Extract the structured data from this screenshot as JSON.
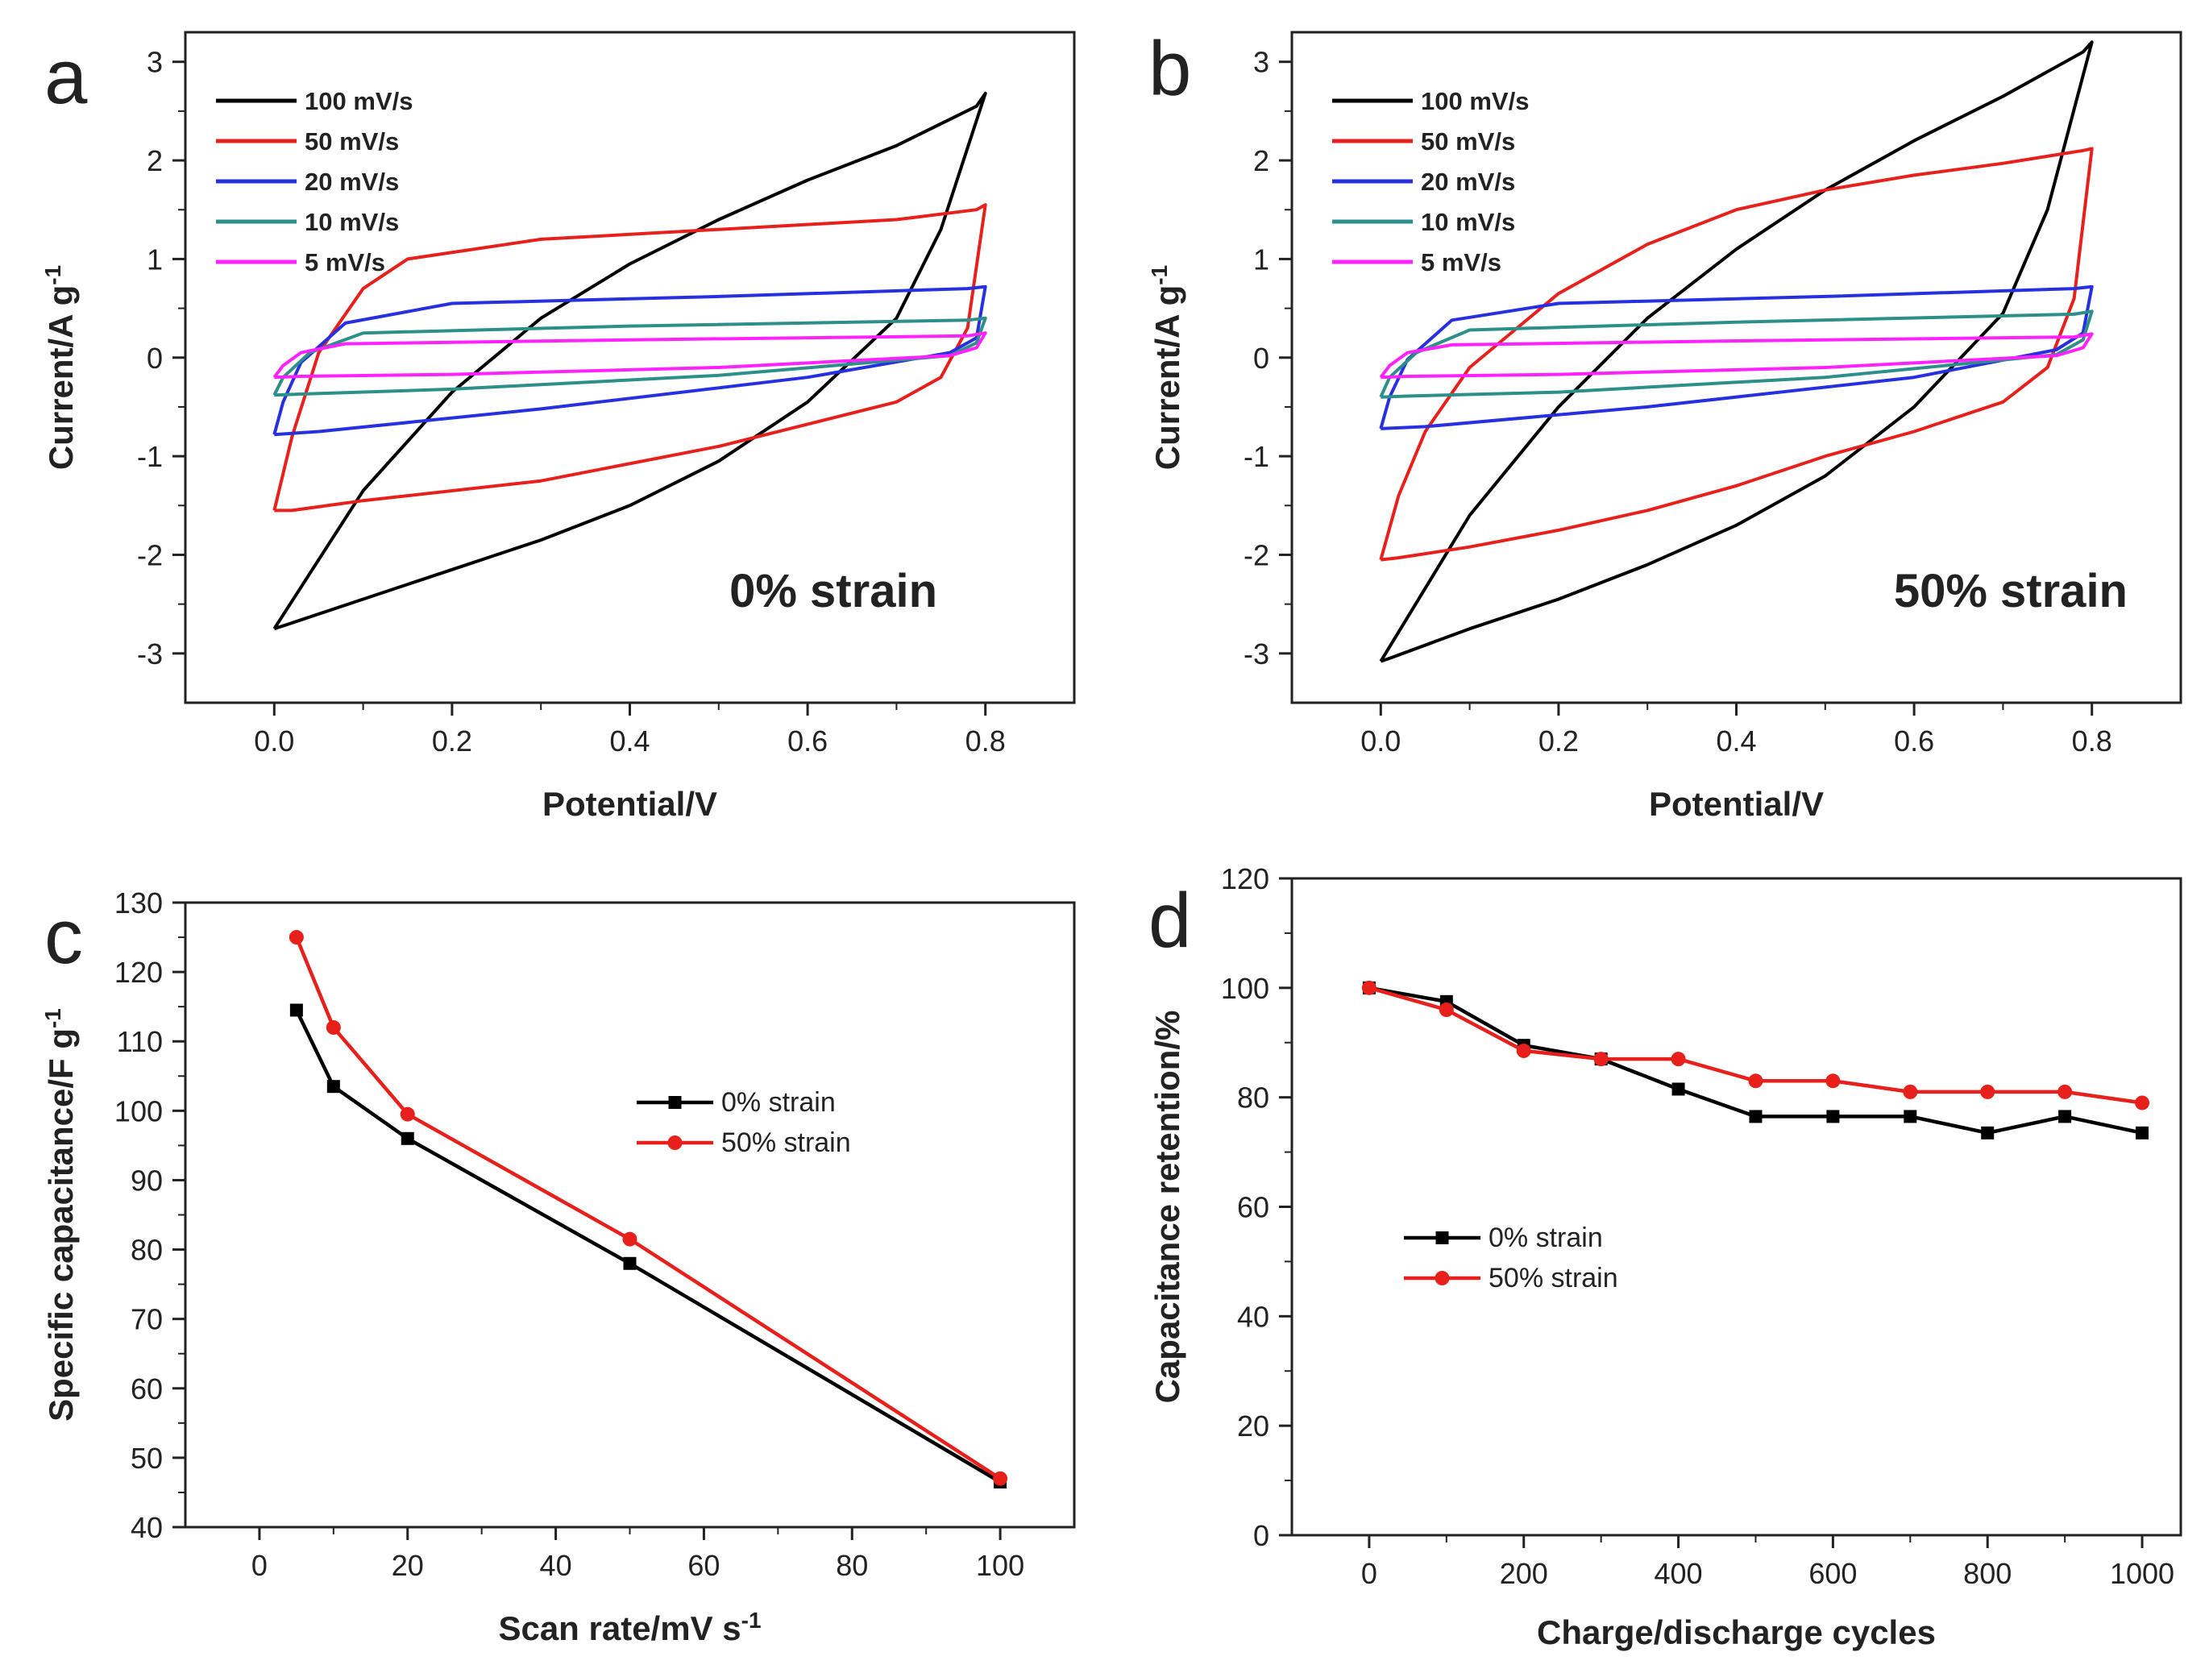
{
  "chart_data": [
    {
      "panel": "a",
      "type": "line",
      "xlabel": "Potential/V",
      "ylabel": "Current/A g",
      "ylabel_sup": "-1",
      "xlim": [
        -0.1,
        0.9
      ],
      "ylim": [
        -3.5,
        3.3
      ],
      "xticks": [
        "0.0",
        "0.2",
        "0.4",
        "0.6",
        "0.8"
      ],
      "xtick_values": [
        0,
        0.2,
        0.4,
        0.6,
        0.8
      ],
      "yticks": [
        "-3",
        "-2",
        "-1",
        "0",
        "1",
        "2",
        "3"
      ],
      "ytick_values": [
        -3,
        -2,
        -1,
        0,
        1,
        2,
        3
      ],
      "annotation": "0% strain",
      "series": [
        {
          "name": "100 mV/s",
          "color": "#000000",
          "x": [
            0,
            0.1,
            0.2,
            0.3,
            0.4,
            0.5,
            0.6,
            0.7,
            0.79,
            0.8,
            0.75,
            0.7,
            0.6,
            0.5,
            0.4,
            0.3,
            0.2,
            0.1,
            0.01,
            0
          ],
          "y": [
            -2.75,
            -1.35,
            -0.35,
            0.4,
            0.95,
            1.4,
            1.8,
            2.15,
            2.55,
            2.68,
            1.3,
            0.4,
            -0.45,
            -1.05,
            -1.5,
            -1.85,
            -2.15,
            -2.45,
            -2.72,
            -2.75
          ]
        },
        {
          "name": "50 mV/s",
          "color": "#e8201c",
          "x": [
            0,
            0.02,
            0.05,
            0.1,
            0.15,
            0.3,
            0.5,
            0.7,
            0.79,
            0.8,
            0.78,
            0.75,
            0.7,
            0.5,
            0.3,
            0.1,
            0.02,
            0
          ],
          "y": [
            -1.55,
            -0.8,
            0.05,
            0.7,
            1.0,
            1.2,
            1.3,
            1.4,
            1.5,
            1.55,
            0.3,
            -0.2,
            -0.45,
            -0.9,
            -1.25,
            -1.45,
            -1.55,
            -1.55
          ]
        },
        {
          "name": "20 mV/s",
          "color": "#2630e0",
          "x": [
            0,
            0.01,
            0.03,
            0.08,
            0.2,
            0.5,
            0.78,
            0.8,
            0.79,
            0.76,
            0.6,
            0.3,
            0.05,
            0
          ],
          "y": [
            -0.78,
            -0.45,
            -0.05,
            0.35,
            0.55,
            0.62,
            0.7,
            0.72,
            0.2,
            0.05,
            -0.2,
            -0.52,
            -0.75,
            -0.78
          ]
        },
        {
          "name": "10 mV/s",
          "color": "#2c8f8a",
          "x": [
            0,
            0.01,
            0.04,
            0.1,
            0.4,
            0.78,
            0.8,
            0.79,
            0.76,
            0.5,
            0.2,
            0.03,
            0
          ],
          "y": [
            -0.38,
            -0.2,
            0.05,
            0.25,
            0.32,
            0.38,
            0.4,
            0.15,
            0.02,
            -0.18,
            -0.32,
            -0.37,
            -0.38
          ]
        },
        {
          "name": "5 mV/s",
          "color": "#ff22ff",
          "x": [
            0,
            0.01,
            0.03,
            0.08,
            0.4,
            0.78,
            0.8,
            0.79,
            0.76,
            0.5,
            0.2,
            0.03,
            0
          ],
          "y": [
            -0.2,
            -0.08,
            0.05,
            0.14,
            0.18,
            0.22,
            0.25,
            0.1,
            0.02,
            -0.1,
            -0.17,
            -0.19,
            -0.2
          ]
        }
      ]
    },
    {
      "panel": "b",
      "type": "line",
      "xlabel": "Potential/V",
      "ylabel": "Current/A g",
      "ylabel_sup": "-1",
      "xlim": [
        -0.1,
        0.9
      ],
      "ylim": [
        -3.5,
        3.3
      ],
      "xticks": [
        "0.0",
        "0.2",
        "0.4",
        "0.6",
        "0.8"
      ],
      "xtick_values": [
        0,
        0.2,
        0.4,
        0.6,
        0.8
      ],
      "yticks": [
        "-3",
        "-2",
        "-1",
        "0",
        "1",
        "2",
        "3"
      ],
      "ytick_values": [
        -3,
        -2,
        -1,
        0,
        1,
        2,
        3
      ],
      "annotation": "50% strain",
      "series": [
        {
          "name": "100 mV/s",
          "color": "#000000",
          "x": [
            0,
            0.1,
            0.2,
            0.3,
            0.4,
            0.5,
            0.6,
            0.7,
            0.79,
            0.8,
            0.75,
            0.7,
            0.6,
            0.5,
            0.4,
            0.3,
            0.2,
            0.1,
            0.01,
            0
          ],
          "y": [
            -3.08,
            -1.6,
            -0.5,
            0.4,
            1.1,
            1.7,
            2.2,
            2.65,
            3.1,
            3.2,
            1.5,
            0.45,
            -0.5,
            -1.2,
            -1.7,
            -2.1,
            -2.45,
            -2.75,
            -3.05,
            -3.08
          ]
        },
        {
          "name": "50 mV/s",
          "color": "#e8201c",
          "x": [
            0,
            0.02,
            0.05,
            0.1,
            0.2,
            0.3,
            0.4,
            0.5,
            0.6,
            0.7,
            0.79,
            0.8,
            0.78,
            0.75,
            0.7,
            0.6,
            0.5,
            0.4,
            0.3,
            0.2,
            0.1,
            0.02,
            0
          ],
          "y": [
            -2.05,
            -1.4,
            -0.75,
            -0.1,
            0.65,
            1.15,
            1.5,
            1.7,
            1.85,
            1.97,
            2.1,
            2.12,
            0.6,
            -0.1,
            -0.45,
            -0.75,
            -1.0,
            -1.3,
            -1.55,
            -1.75,
            -1.92,
            -2.03,
            -2.05
          ]
        },
        {
          "name": "20 mV/s",
          "color": "#2630e0",
          "x": [
            0,
            0.01,
            0.03,
            0.08,
            0.2,
            0.5,
            0.78,
            0.8,
            0.79,
            0.76,
            0.6,
            0.3,
            0.05,
            0
          ],
          "y": [
            -0.72,
            -0.4,
            -0.02,
            0.38,
            0.55,
            0.62,
            0.7,
            0.72,
            0.25,
            0.08,
            -0.2,
            -0.5,
            -0.7,
            -0.72
          ]
        },
        {
          "name": "10 mV/s",
          "color": "#2c8f8a",
          "x": [
            0,
            0.01,
            0.04,
            0.1,
            0.4,
            0.78,
            0.8,
            0.79,
            0.76,
            0.5,
            0.2,
            0.03,
            0
          ],
          "y": [
            -0.4,
            -0.2,
            0.05,
            0.28,
            0.36,
            0.44,
            0.47,
            0.18,
            0.03,
            -0.2,
            -0.35,
            -0.39,
            -0.4
          ]
        },
        {
          "name": "5 mV/s",
          "color": "#ff22ff",
          "x": [
            0,
            0.01,
            0.03,
            0.08,
            0.4,
            0.78,
            0.8,
            0.79,
            0.76,
            0.5,
            0.2,
            0.03,
            0
          ],
          "y": [
            -0.2,
            -0.08,
            0.05,
            0.13,
            0.17,
            0.21,
            0.24,
            0.1,
            0.02,
            -0.1,
            -0.17,
            -0.19,
            -0.2
          ]
        }
      ]
    },
    {
      "panel": "c",
      "type": "line",
      "xlabel": "Scan rate/mV s",
      "xlabel_sup": "-1",
      "ylabel": "Specific capacitance/F g",
      "ylabel_sup": "-1",
      "xlim": [
        -10,
        110
      ],
      "ylim": [
        40,
        130
      ],
      "xticks": [
        "0",
        "20",
        "40",
        "60",
        "80",
        "100"
      ],
      "xtick_values": [
        0,
        20,
        40,
        60,
        80,
        100
      ],
      "yticks": [
        "40",
        "50",
        "60",
        "70",
        "80",
        "90",
        "100",
        "110",
        "120",
        "130"
      ],
      "ytick_values": [
        40,
        50,
        60,
        70,
        80,
        90,
        100,
        110,
        120,
        130
      ],
      "series": [
        {
          "name": "0% strain",
          "color": "#000000",
          "marker": "square",
          "x": [
            5,
            10,
            20,
            50,
            100
          ],
          "y": [
            114.5,
            103.5,
            96,
            78,
            46.5
          ]
        },
        {
          "name": "50% strain",
          "color": "#e8201c",
          "marker": "circle",
          "x": [
            5,
            10,
            20,
            50,
            100
          ],
          "y": [
            125,
            112,
            99.5,
            81.5,
            47
          ]
        }
      ]
    },
    {
      "panel": "d",
      "type": "line",
      "xlabel": "Charge/discharge cycles",
      "ylabel": "Capacitance retention/%",
      "xlim": [
        -100,
        1050
      ],
      "ylim": [
        0,
        120
      ],
      "xticks": [
        "0",
        "200",
        "400",
        "600",
        "800",
        "1000"
      ],
      "xtick_values": [
        0,
        200,
        400,
        600,
        800,
        1000
      ],
      "yticks": [
        "0",
        "20",
        "40",
        "60",
        "80",
        "100",
        "120"
      ],
      "ytick_values": [
        0,
        20,
        40,
        60,
        80,
        100,
        120
      ],
      "series": [
        {
          "name": "0% strain",
          "color": "#000000",
          "marker": "square",
          "x": [
            0,
            100,
            200,
            300,
            400,
            500,
            600,
            700,
            800,
            900,
            1000
          ],
          "y": [
            100,
            97.5,
            89.5,
            87,
            81.5,
            76.5,
            76.5,
            76.5,
            73.5,
            76.5,
            73.5
          ]
        },
        {
          "name": "50% strain",
          "color": "#e8201c",
          "marker": "circle",
          "x": [
            0,
            100,
            200,
            300,
            400,
            500,
            600,
            700,
            800,
            900,
            1000
          ],
          "y": [
            100,
            96,
            88.5,
            87,
            87,
            83,
            83,
            81,
            81,
            81,
            79
          ]
        }
      ]
    }
  ]
}
